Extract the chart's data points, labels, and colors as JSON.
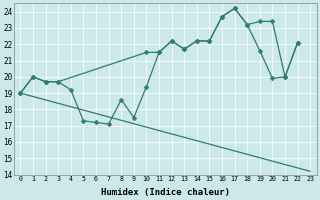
{
  "xlabel": "Humidex (Indice chaleur)",
  "bg_color": "#cce8e8",
  "line_color": "#2e7d6e",
  "xlim": [
    -0.5,
    23.5
  ],
  "ylim": [
    14,
    24.5
  ],
  "yticks": [
    14,
    15,
    16,
    17,
    18,
    19,
    20,
    21,
    22,
    23,
    24
  ],
  "xticks": [
    0,
    1,
    2,
    3,
    4,
    5,
    6,
    7,
    8,
    9,
    10,
    11,
    12,
    13,
    14,
    15,
    16,
    17,
    18,
    19,
    20,
    21,
    22,
    23
  ],
  "line1_x": [
    0,
    1,
    2,
    3,
    10,
    11,
    12,
    13,
    14,
    15,
    16,
    17,
    18,
    19,
    20,
    21,
    22
  ],
  "line1_y": [
    19.0,
    20.0,
    19.7,
    19.7,
    21.5,
    21.5,
    22.2,
    21.7,
    22.2,
    22.2,
    23.7,
    24.2,
    23.2,
    23.4,
    23.4,
    20.0,
    22.1
  ],
  "line2_x": [
    0,
    1,
    2,
    3,
    4,
    5,
    6,
    7,
    8,
    9,
    10,
    11,
    12,
    13,
    14,
    15,
    16,
    17,
    18,
    19,
    20,
    21,
    22
  ],
  "line2_y": [
    19.0,
    20.0,
    19.7,
    19.7,
    19.2,
    17.3,
    17.2,
    17.1,
    18.6,
    17.5,
    19.4,
    21.5,
    22.2,
    21.7,
    22.2,
    22.2,
    23.7,
    24.2,
    23.2,
    21.6,
    19.9,
    20.0,
    22.1
  ],
  "line3_x": [
    0,
    23
  ],
  "line3_y": [
    19.0,
    14.2
  ],
  "marker": "D",
  "markersize": 2.5,
  "linewidth": 0.9
}
